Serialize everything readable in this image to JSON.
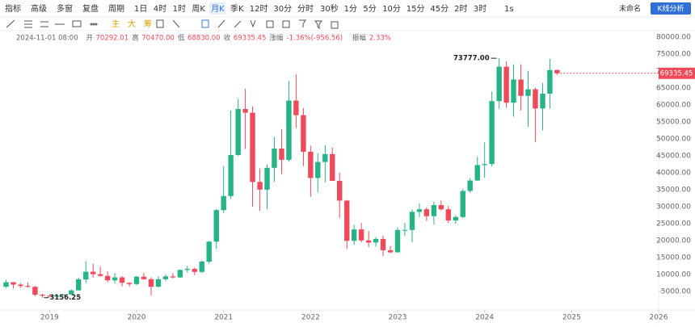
{
  "toolbar": {
    "items": [
      "指标",
      "高级",
      "多窗",
      "复盘",
      "周期",
      "1日",
      "4时",
      "1时",
      "周K",
      "月K",
      "季K",
      "12时",
      "30分",
      "分时",
      "30秒",
      "1分",
      "5分",
      "10分",
      "15分",
      "45分",
      "2时",
      "3时"
    ],
    "active": "月K",
    "speed": "1s",
    "layout_name": "未命名",
    "analysis_button": "K线分析"
  },
  "tools": {
    "labels": [
      "主",
      "大",
      "筹"
    ]
  },
  "info": {
    "date": "2024-11-01 08:00",
    "open_label": "开",
    "open": "70292.01",
    "high_label": "高",
    "high": "70470.00",
    "low_label": "低",
    "low": "68830.00",
    "close_label": "收",
    "close": "69335.45",
    "change_label": "涨幅",
    "change": "-1.36%(-956.56)",
    "amplitude_label": "振幅",
    "amplitude": "2.33%"
  },
  "chart_data": {
    "type": "candlestick",
    "up_color": "#26b386",
    "down_color": "#ef4a5a",
    "grid": false,
    "xlim": [
      2018.43,
      2026.0
    ],
    "ylim": [
      0,
      80000
    ],
    "xticks": [
      2019,
      2020,
      2021,
      2022,
      2023,
      2024,
      2025,
      2026
    ],
    "yticks": [
      {
        "value": 5000,
        "label": "5000.00"
      },
      {
        "value": 10000,
        "label": "10000.00"
      },
      {
        "value": 15000,
        "label": "15000.00"
      },
      {
        "value": 20000,
        "label": "20000.00"
      },
      {
        "value": 25000,
        "label": "25000.00"
      },
      {
        "value": 30000,
        "label": "30000.00"
      },
      {
        "value": 35000,
        "label": "35000.00"
      },
      {
        "value": 40000,
        "label": "40000.00"
      },
      {
        "value": 45000,
        "label": "45000.00"
      },
      {
        "value": 50000,
        "label": "50000.00"
      },
      {
        "value": 55000,
        "label": "55000.00"
      },
      {
        "value": 60000,
        "label": "60000.00"
      },
      {
        "value": 65000,
        "label": "65000.00"
      },
      {
        "value": 70000,
        "label": "70000.00"
      },
      {
        "value": 75000,
        "label": "75000.00"
      },
      {
        "value": 80000,
        "label": "80000.00"
      }
    ],
    "max_label": "73777.00",
    "min_label": "3156.25",
    "x": [
      2018.5,
      2018.583,
      2018.667,
      2018.75,
      2018.833,
      2018.917,
      2019,
      2019.083,
      2019.167,
      2019.25,
      2019.333,
      2019.417,
      2019.5,
      2019.583,
      2019.667,
      2019.75,
      2019.833,
      2019.917,
      2020,
      2020.083,
      2020.167,
      2020.25,
      2020.333,
      2020.417,
      2020.5,
      2020.583,
      2020.667,
      2020.75,
      2020.833,
      2020.917,
      2021,
      2021.083,
      2021.167,
      2021.25,
      2021.333,
      2021.417,
      2021.5,
      2021.583,
      2021.667,
      2021.75,
      2021.833,
      2021.917,
      2022,
      2022.083,
      2022.167,
      2022.25,
      2022.333,
      2022.417,
      2022.5,
      2022.583,
      2022.667,
      2022.75,
      2022.833,
      2022.917,
      2023,
      2023.083,
      2023.167,
      2023.25,
      2023.333,
      2023.417,
      2023.5,
      2023.583,
      2023.667,
      2023.75,
      2023.833,
      2023.917,
      2024,
      2024.083,
      2024.167,
      2024.25,
      2024.333,
      2024.417,
      2024.5,
      2024.583,
      2024.667,
      2024.75,
      2024.833
    ],
    "candles": [
      [
        6390,
        8490,
        6070,
        7730
      ],
      [
        7730,
        7760,
        5880,
        7030
      ],
      [
        7030,
        7410,
        6110,
        6630
      ],
      [
        6630,
        7680,
        6180,
        6370
      ],
      [
        6370,
        6600,
        3650,
        4040
      ],
      [
        4040,
        4310,
        3156.25,
        3740
      ],
      [
        3740,
        4140,
        3400,
        3460
      ],
      [
        3460,
        4210,
        3400,
        3850
      ],
      [
        3850,
        4140,
        3730,
        4100
      ],
      [
        4100,
        5640,
        4080,
        5320
      ],
      [
        5320,
        9070,
        5320,
        8560
      ],
      [
        8560,
        13970,
        7510,
        10820
      ],
      [
        10820,
        13180,
        9070,
        10090
      ],
      [
        10090,
        12330,
        9350,
        9590
      ],
      [
        9590,
        10950,
        7710,
        8290
      ],
      [
        8290,
        10370,
        7300,
        9150
      ],
      [
        9150,
        9510,
        6520,
        7560
      ],
      [
        7560,
        7750,
        6430,
        7190
      ],
      [
        7190,
        9580,
        6850,
        9350
      ],
      [
        9350,
        10500,
        8450,
        8600
      ],
      [
        8600,
        9190,
        3850,
        6410
      ],
      [
        6410,
        9470,
        6150,
        8620
      ],
      [
        8620,
        10070,
        8110,
        9450
      ],
      [
        9450,
        10390,
        8830,
        9140
      ],
      [
        9140,
        11450,
        8970,
        11350
      ],
      [
        11350,
        12470,
        10530,
        11650
      ],
      [
        11650,
        12080,
        9820,
        10780
      ],
      [
        10780,
        14100,
        10370,
        13800
      ],
      [
        13800,
        19860,
        13200,
        19700
      ],
      [
        19700,
        29300,
        17580,
        28990
      ],
      [
        28990,
        41950,
        28130,
        33140
      ],
      [
        33140,
        58350,
        32300,
        45240
      ],
      [
        45240,
        61790,
        44960,
        58800
      ],
      [
        58800,
        64850,
        47000,
        57720
      ],
      [
        57720,
        59590,
        30000,
        37300
      ],
      [
        37300,
        41330,
        28800,
        35040
      ],
      [
        35040,
        42450,
        29280,
        41460
      ],
      [
        41460,
        50500,
        37330,
        47130
      ],
      [
        47130,
        52920,
        39600,
        43820
      ],
      [
        43820,
        67000,
        43290,
        61300
      ],
      [
        61300,
        69000,
        53250,
        57000
      ],
      [
        57000,
        59100,
        42000,
        46210
      ],
      [
        46210,
        47990,
        32930,
        38470
      ],
      [
        38470,
        45820,
        34320,
        43190
      ],
      [
        43190,
        48190,
        37170,
        45510
      ],
      [
        45510,
        47440,
        37700,
        37630
      ],
      [
        37630,
        40040,
        26700,
        31800
      ],
      [
        31800,
        31980,
        17570,
        19930
      ],
      [
        19930,
        24670,
        18780,
        23290
      ],
      [
        23290,
        25210,
        19520,
        20050
      ],
      [
        20050,
        22800,
        18120,
        19420
      ],
      [
        19420,
        21090,
        18190,
        20490
      ],
      [
        20490,
        21480,
        15480,
        17160
      ],
      [
        17160,
        18390,
        16260,
        16540
      ],
      [
        16540,
        23960,
        16500,
        23130
      ],
      [
        23130,
        25250,
        21350,
        23140
      ],
      [
        23140,
        29190,
        19550,
        28480
      ],
      [
        28480,
        31000,
        26940,
        29230
      ],
      [
        29230,
        29820,
        25810,
        27220
      ],
      [
        27220,
        31430,
        24800,
        30470
      ],
      [
        30470,
        31800,
        28860,
        29230
      ],
      [
        29230,
        30230,
        25170,
        25940
      ],
      [
        25940,
        27480,
        24900,
        26960
      ],
      [
        26960,
        35200,
        26560,
        34640
      ],
      [
        34640,
        38420,
        34100,
        37720
      ],
      [
        37720,
        44700,
        37620,
        42280
      ],
      [
        42280,
        48970,
        38550,
        42580
      ],
      [
        42580,
        63970,
        41880,
        61130
      ],
      [
        61130,
        73777,
        59000,
        71290
      ],
      [
        71290,
        72800,
        59190,
        60670
      ],
      [
        60670,
        71980,
        56550,
        67490
      ],
      [
        67490,
        71990,
        58400,
        62680
      ],
      [
        62680,
        70080,
        53500,
        64620
      ],
      [
        64620,
        65100,
        49000,
        58970
      ],
      [
        58970,
        66500,
        52550,
        63330
      ],
      [
        63330,
        73620,
        58900,
        70290
      ],
      [
        70292.01,
        70470,
        68830,
        69335.45
      ]
    ]
  }
}
